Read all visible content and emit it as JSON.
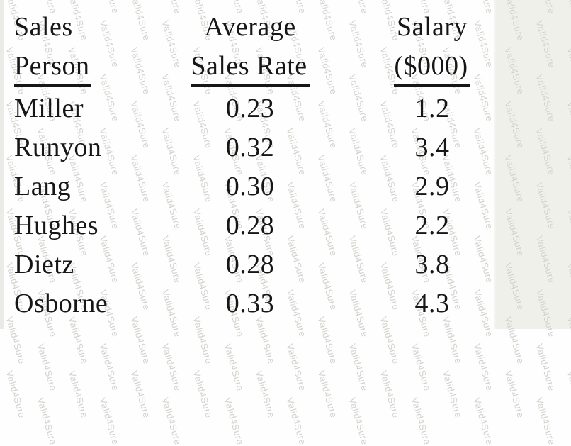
{
  "watermark": {
    "text": "Valid4Sure"
  },
  "page": {
    "background": "#fefefe",
    "margin_background": "#f0f0eb",
    "edge_strip": "#eaeae6",
    "text_color": "#161616",
    "watermark_color": "#d2d2cd"
  },
  "table": {
    "columns": [
      {
        "line1": "Sales",
        "line2": "Person"
      },
      {
        "line1": "Average",
        "line2": "Sales Rate"
      },
      {
        "line1": "Salary",
        "line2": "($000)"
      }
    ],
    "rows": [
      {
        "person": "Miller",
        "rate": "0.23",
        "salary": "1.2"
      },
      {
        "person": "Runyon",
        "rate": "0.32",
        "salary": "3.4"
      },
      {
        "person": "Lang",
        "rate": "0.30",
        "salary": "2.9"
      },
      {
        "person": "Hughes",
        "rate": "0.28",
        "salary": "2.2"
      },
      {
        "person": "Dietz",
        "rate": "0.28",
        "salary": "3.8"
      },
      {
        "person": "Osborne",
        "rate": "0.33",
        "salary": "4.3"
      }
    ]
  }
}
